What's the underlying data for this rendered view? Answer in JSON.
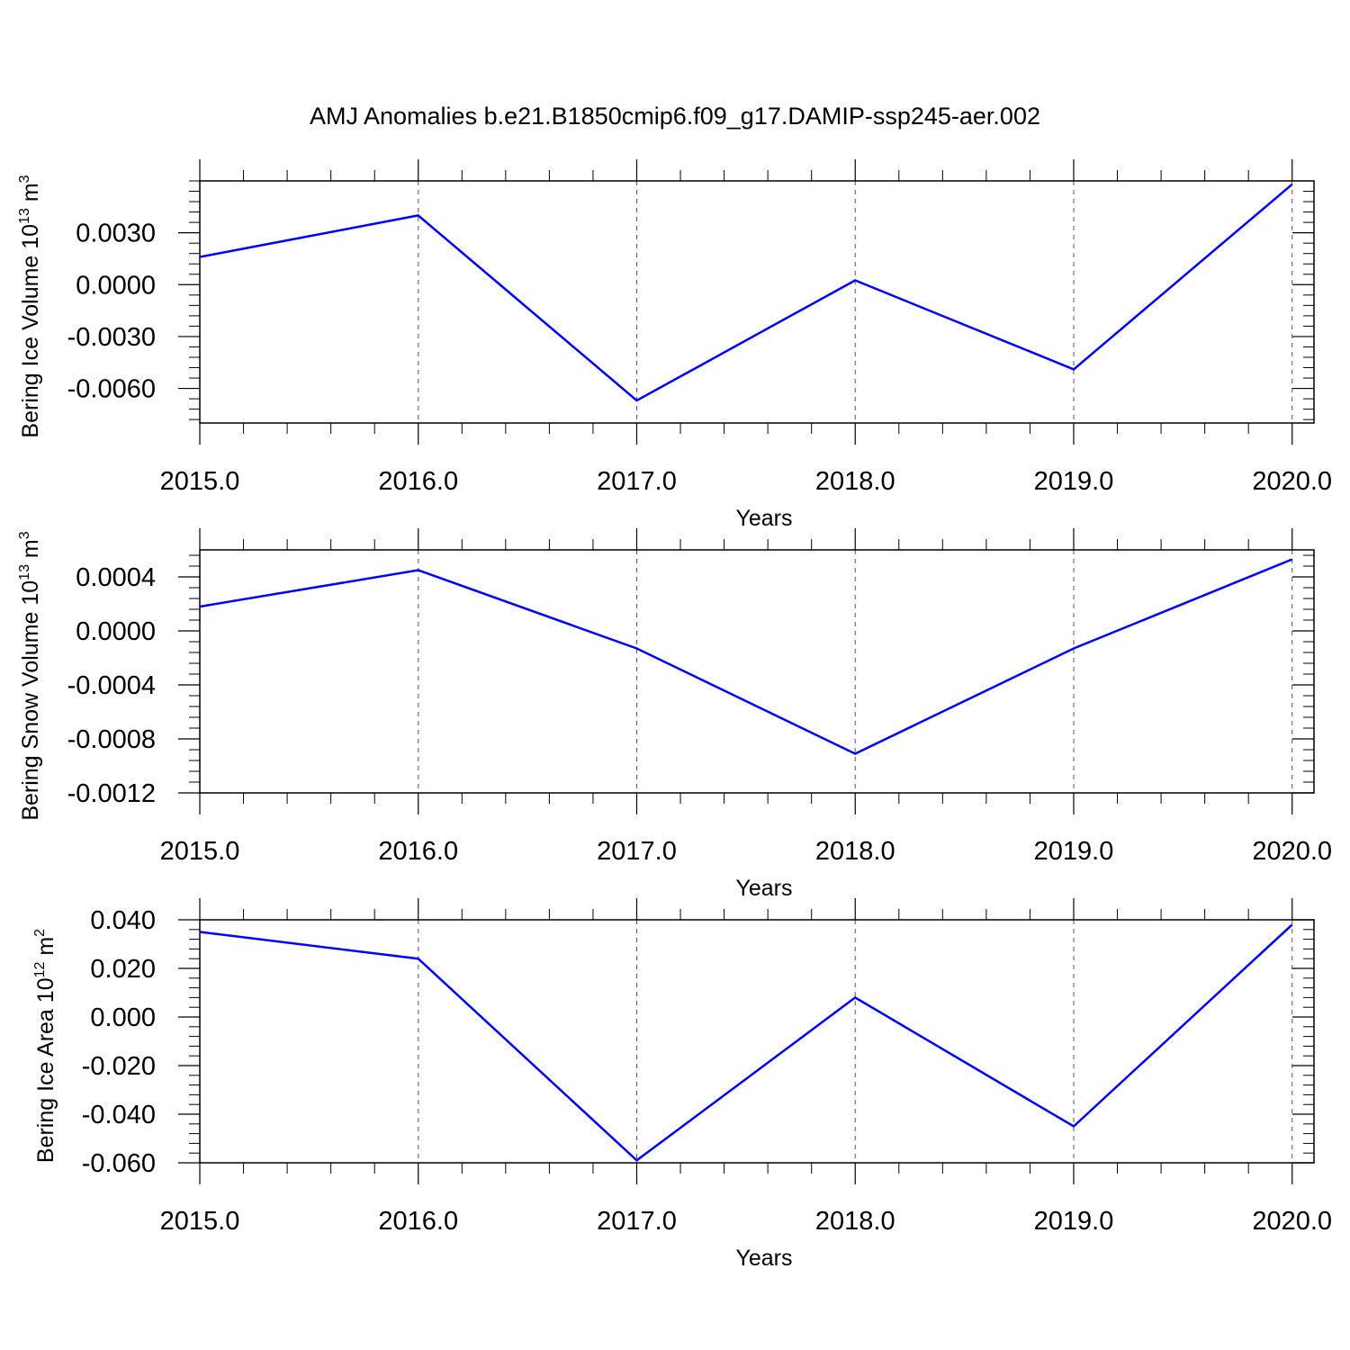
{
  "chart_data": [
    {
      "type": "line",
      "title": "AMJ Anomalies b.e21.B1850cmip6.f09_g17.DAMIP-ssp245-aer.002",
      "ylabel": "Bering Ice Volume 10",
      "ylabel_exp": "13",
      "ylabel_unit": " m",
      "ylabel_unit_exp": "3",
      "xlabel": "Years",
      "x": [
        2015,
        2016,
        2017,
        2018,
        2019,
        2020
      ],
      "series": [
        {
          "values": [
            0.0016,
            0.004,
            -0.0067,
            0.00025,
            -0.0049,
            0.0058
          ]
        }
      ],
      "xlim": [
        2015,
        2020.1
      ],
      "ylim": [
        -0.008,
        0.006
      ],
      "xticks": [
        "2015.0",
        "2016.0",
        "2017.0",
        "2018.0",
        "2019.0",
        "2020.0"
      ],
      "yticks": [
        {
          "v": 0.003,
          "label": "0.0030"
        },
        {
          "v": 0,
          "label": "0.0000"
        },
        {
          "v": -0.003,
          "label": "-0.0030"
        },
        {
          "v": -0.006,
          "label": "-0.0060"
        }
      ],
      "grid": "vertical dashed",
      "color": "#0000ff"
    },
    {
      "type": "line",
      "title": "",
      "ylabel": "Bering Snow Volume 10",
      "ylabel_exp": "13",
      "ylabel_unit": " m",
      "ylabel_unit_exp": "3",
      "xlabel": "Years",
      "x": [
        2015,
        2016,
        2017,
        2018,
        2019,
        2020
      ],
      "series": [
        {
          "values": [
            0.00018,
            0.00045,
            -0.00013,
            -0.00091,
            -0.00013,
            0.00053
          ]
        }
      ],
      "xlim": [
        2015,
        2020.1
      ],
      "ylim": [
        -0.0012,
        0.0006
      ],
      "xticks": [
        "2015.0",
        "2016.0",
        "2017.0",
        "2018.0",
        "2019.0",
        "2020.0"
      ],
      "yticks": [
        {
          "v": 0.0004,
          "label": "0.0004"
        },
        {
          "v": 0,
          "label": "0.0000"
        },
        {
          "v": -0.0004,
          "label": "-0.0004"
        },
        {
          "v": -0.0008,
          "label": "-0.0008"
        },
        {
          "v": -0.0012,
          "label": "-0.0012"
        }
      ],
      "grid": "vertical dashed",
      "color": "#0000ff"
    },
    {
      "type": "line",
      "title": "",
      "ylabel": "Bering Ice Area 10",
      "ylabel_exp": "12",
      "ylabel_unit": " m",
      "ylabel_unit_exp": "2",
      "xlabel": "Years",
      "x": [
        2015,
        2016,
        2017,
        2018,
        2019,
        2020
      ],
      "series": [
        {
          "values": [
            0.035,
            0.024,
            -0.059,
            0.008,
            -0.045,
            0.038
          ]
        }
      ],
      "xlim": [
        2015,
        2020.1
      ],
      "ylim": [
        -0.06,
        0.04
      ],
      "xticks": [
        "2015.0",
        "2016.0",
        "2017.0",
        "2018.0",
        "2019.0",
        "2020.0"
      ],
      "yticks": [
        {
          "v": 0.04,
          "label": "0.040"
        },
        {
          "v": 0.02,
          "label": "0.020"
        },
        {
          "v": 0,
          "label": "0.000"
        },
        {
          "v": -0.02,
          "label": "-0.020"
        },
        {
          "v": -0.04,
          "label": "-0.040"
        },
        {
          "v": -0.06,
          "label": "-0.060"
        }
      ],
      "grid": "vertical dashed",
      "color": "#0000ff"
    }
  ]
}
